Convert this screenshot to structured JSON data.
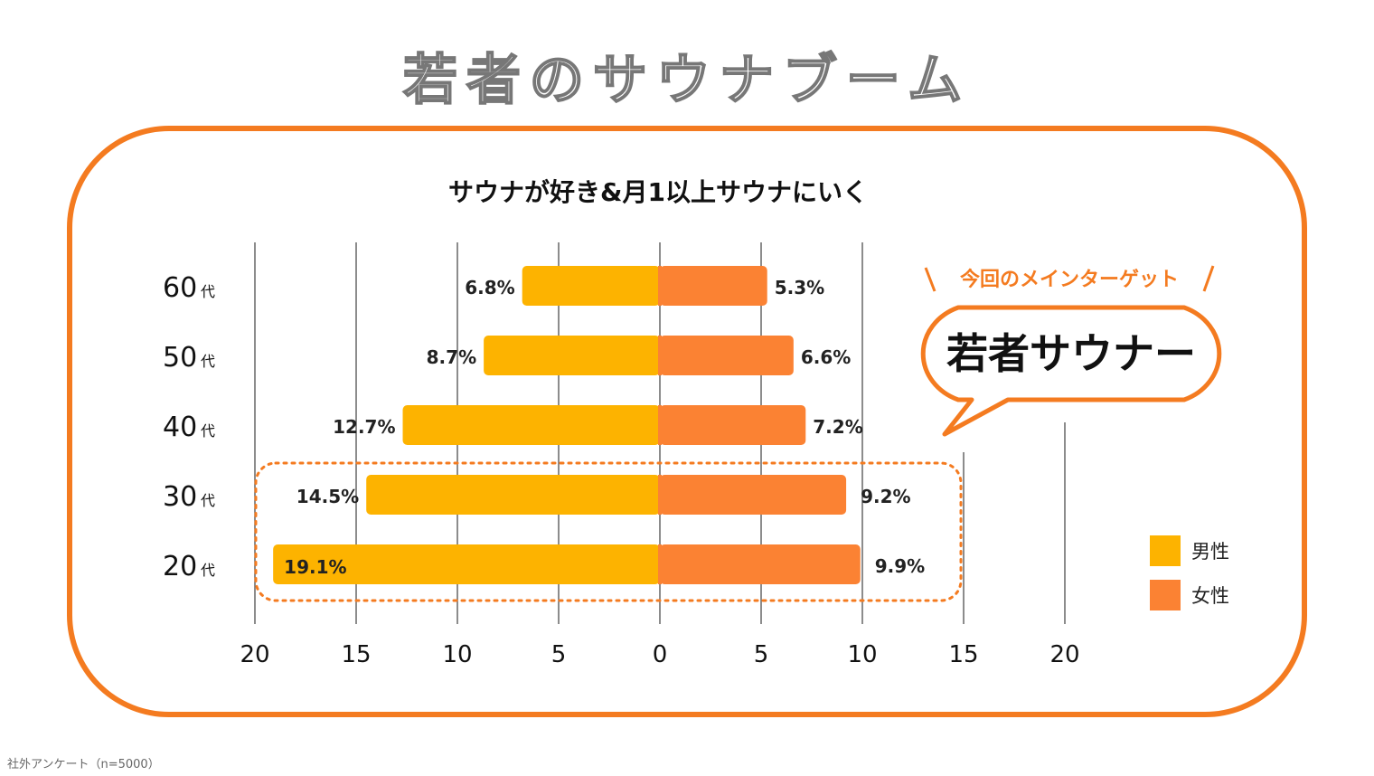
{
  "title": "若者のサウナブーム",
  "source": "社外アンケート（n=5000）",
  "callout": {
    "heading": "今回のメインターゲット",
    "text": "若者サウナー"
  },
  "colors": {
    "male": "#FDB300",
    "female": "#FB8233",
    "frame": "#F47B20",
    "grid": "#666666"
  },
  "chart_data": {
    "type": "bar",
    "orientation": "horizontal-butterfly",
    "title": "サウナが好き&月1以上サウナにいく",
    "categories": [
      "60代",
      "50代",
      "40代",
      "30代",
      "20代"
    ],
    "category_num": [
      "60",
      "50",
      "40",
      "30",
      "20"
    ],
    "category_suffix": "代",
    "series": [
      {
        "name": "男性",
        "side": "left",
        "values": [
          6.8,
          8.7,
          12.7,
          14.5,
          19.1
        ],
        "labels": [
          "6.8%",
          "8.7%",
          "12.7%",
          "14.5%",
          "19.1%"
        ]
      },
      {
        "name": "女性",
        "side": "right",
        "values": [
          5.3,
          6.6,
          7.2,
          9.2,
          9.9
        ],
        "labels": [
          "5.3%",
          "6.6%",
          "7.2%",
          "9.2%",
          "9.9%"
        ]
      }
    ],
    "xlim": [
      -20,
      20
    ],
    "xticks": [
      "20",
      "15",
      "10",
      "5",
      "0",
      "5",
      "10",
      "15",
      "20"
    ],
    "grid": true,
    "highlight": [
      "30代",
      "20代"
    ],
    "legend": "right"
  }
}
